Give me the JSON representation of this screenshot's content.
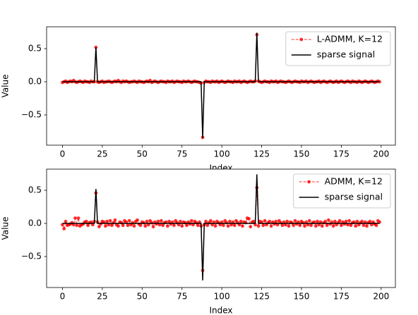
{
  "chart_data": [
    {
      "type": "line",
      "xlabel": "Index",
      "ylabel": "Value",
      "legend": "upper right",
      "grid": false,
      "xlim": [
        -9.95,
        208.95
      ],
      "ylim": [
        -0.957,
        0.83
      ],
      "xticks": [
        0,
        25,
        50,
        75,
        100,
        125,
        150,
        175,
        200
      ],
      "yticks": [
        {
          "value": -0.5,
          "label": "−0.5"
        },
        {
          "value": 0,
          "label": "0.0"
        },
        0.5
      ],
      "x": [
        0,
        1,
        2,
        3,
        4,
        5,
        6,
        7,
        8,
        9,
        10,
        11,
        12,
        13,
        14,
        15,
        16,
        17,
        18,
        19,
        20,
        21,
        22,
        23,
        24,
        25,
        26,
        27,
        28,
        29,
        30,
        31,
        32,
        33,
        34,
        35,
        36,
        37,
        38,
        39,
        40,
        41,
        42,
        43,
        44,
        45,
        46,
        47,
        48,
        49,
        50,
        51,
        52,
        53,
        54,
        55,
        56,
        57,
        58,
        59,
        60,
        61,
        62,
        63,
        64,
        65,
        66,
        67,
        68,
        69,
        70,
        71,
        72,
        73,
        74,
        75,
        76,
        77,
        78,
        79,
        80,
        81,
        82,
        83,
        84,
        85,
        86,
        87,
        88,
        89,
        90,
        91,
        92,
        93,
        94,
        95,
        96,
        97,
        98,
        99,
        100,
        101,
        102,
        103,
        104,
        105,
        106,
        107,
        108,
        109,
        110,
        111,
        112,
        113,
        114,
        115,
        116,
        117,
        118,
        119,
        120,
        121,
        122,
        123,
        124,
        125,
        126,
        127,
        128,
        129,
        130,
        131,
        132,
        133,
        134,
        135,
        136,
        137,
        138,
        139,
        140,
        141,
        142,
        143,
        144,
        145,
        146,
        147,
        148,
        149,
        150,
        151,
        152,
        153,
        154,
        155,
        156,
        157,
        158,
        159,
        160,
        161,
        162,
        163,
        164,
        165,
        166,
        167,
        168,
        169,
        170,
        171,
        172,
        173,
        174,
        175,
        176,
        177,
        178,
        179,
        180,
        181,
        182,
        183,
        184,
        185,
        186,
        187,
        188,
        189,
        190,
        191,
        192,
        193,
        194,
        195,
        196,
        197,
        198,
        199
      ],
      "series": [
        {
          "name": "L-ADMM, K=12",
          "color": "#ff0000",
          "style": "dashed-marker",
          "values": [
            -0.01,
            0,
            0.01,
            -0.01,
            0,
            0.01,
            0,
            0.02,
            0,
            -0.01,
            0,
            0.01,
            0,
            -0.01,
            0.01,
            0,
            0,
            -0.01,
            0.01,
            0,
            0,
            0.52,
            0,
            -0.01,
            0,
            0.01,
            -0.01,
            0,
            0,
            0.01,
            0,
            -0.01,
            0,
            0.01,
            0,
            0.02,
            0,
            -0.01,
            0.01,
            0,
            0.01,
            0,
            -0.01,
            0,
            0,
            0.01,
            0,
            -0.01,
            0.01,
            0,
            0,
            -0.01,
            0,
            0.01,
            0,
            0.02,
            -0.01,
            0,
            0.01,
            0,
            -0.01,
            0,
            0.01,
            0,
            0,
            -0.01,
            0.01,
            0,
            0,
            0.01,
            -0.01,
            0,
            0.01,
            0,
            0,
            -0.01,
            0.01,
            0,
            0,
            0.01,
            0,
            -0.01,
            0,
            0.01,
            0,
            0,
            -0.01,
            -0.02,
            -0.84,
            -0.01,
            0.01,
            0,
            0,
            -0.01,
            0.01,
            0,
            0,
            0.01,
            -0.01,
            0,
            0.01,
            0,
            -0.01,
            0,
            0.01,
            0,
            0,
            -0.01,
            0.01,
            0,
            0,
            0.01,
            -0.01,
            0,
            0.01,
            0,
            -0.01,
            0,
            0.01,
            0,
            0,
            0.01,
            0.71,
            0.01,
            0,
            -0.01,
            0,
            0.01,
            0,
            0,
            -0.01,
            0.01,
            0,
            0,
            0.01,
            -0.01,
            0,
            0.01,
            0,
            0,
            -0.01,
            0,
            0.01,
            0,
            -0.01,
            0,
            0.01,
            0,
            0,
            -0.01,
            0.01,
            0,
            0,
            0.01,
            -0.01,
            0,
            0.01,
            0,
            -0.01,
            0,
            0,
            0.01,
            -0.01,
            0,
            0.01,
            0,
            -0.01,
            0,
            0.01,
            0,
            -0.01,
            0,
            0.01,
            -0.01,
            0,
            0.01,
            0,
            -0.01,
            0,
            0.01,
            0,
            -0.01,
            0.01,
            0,
            0,
            -0.01,
            0.01,
            0,
            -0.01,
            0,
            0.01,
            0,
            -0.01,
            0,
            0.01,
            0,
            -0.01,
            0,
            0.01,
            0
          ]
        },
        {
          "name": "sparse signal",
          "color": "#000000",
          "style": "solid",
          "values": [
            0,
            0,
            0,
            0,
            0,
            0,
            0,
            0,
            0,
            0,
            0,
            0,
            0,
            0,
            0,
            0,
            0,
            0,
            0,
            0,
            0,
            0.52,
            0,
            0,
            0,
            0,
            0,
            0,
            0,
            0,
            0,
            0,
            0,
            0,
            0,
            0,
            0,
            0,
            0,
            0,
            0,
            0,
            0,
            0,
            0,
            0,
            0,
            0,
            0,
            0,
            0,
            0,
            0,
            0,
            0,
            0,
            0,
            0,
            0,
            0,
            0,
            0,
            0,
            0,
            0,
            0,
            0,
            0,
            0,
            0,
            0,
            0,
            0,
            0,
            0,
            0,
            0,
            0,
            0,
            0,
            0,
            0,
            0,
            0,
            0,
            0,
            0,
            0,
            -0.85,
            0,
            0,
            0,
            0,
            0,
            0,
            0,
            0,
            0,
            0,
            0,
            0,
            0,
            0,
            0,
            0,
            0,
            0,
            0,
            0,
            0,
            0,
            0,
            0,
            0,
            0,
            0,
            0,
            0,
            0,
            0,
            0,
            0,
            0.74,
            0,
            0,
            0,
            0,
            0,
            0,
            0,
            0,
            0,
            0,
            0,
            0,
            0,
            0,
            0,
            0,
            0,
            0,
            0,
            0,
            0,
            0,
            0,
            0,
            0,
            0,
            0,
            0,
            0,
            0,
            0,
            0,
            0,
            0,
            0,
            0,
            0,
            0,
            0,
            0,
            0,
            0,
            0,
            0,
            0,
            0,
            0,
            0,
            0,
            0,
            0,
            0,
            0,
            0,
            0,
            0,
            0,
            0,
            0,
            0,
            0,
            0,
            0,
            0,
            0,
            0,
            0,
            0,
            0,
            0,
            0,
            0,
            0,
            0,
            0,
            0,
            0
          ]
        }
      ]
    },
    {
      "type": "line",
      "xlabel": "Index",
      "ylabel": "Value",
      "legend": "upper right",
      "grid": false,
      "xlim": [
        -9.95,
        208.95
      ],
      "ylim": [
        -0.968,
        0.819
      ],
      "xticks": [
        0,
        25,
        50,
        75,
        100,
        125,
        150,
        175,
        200
      ],
      "yticks": [
        {
          "value": -0.5,
          "label": "−0.5"
        },
        {
          "value": 0,
          "label": "0.0"
        },
        0.5
      ],
      "x": [
        0,
        1,
        2,
        3,
        4,
        5,
        6,
        7,
        8,
        9,
        10,
        11,
        12,
        13,
        14,
        15,
        16,
        17,
        18,
        19,
        20,
        21,
        22,
        23,
        24,
        25,
        26,
        27,
        28,
        29,
        30,
        31,
        32,
        33,
        34,
        35,
        36,
        37,
        38,
        39,
        40,
        41,
        42,
        43,
        44,
        45,
        46,
        47,
        48,
        49,
        50,
        51,
        52,
        53,
        54,
        55,
        56,
        57,
        58,
        59,
        60,
        61,
        62,
        63,
        64,
        65,
        66,
        67,
        68,
        69,
        70,
        71,
        72,
        73,
        74,
        75,
        76,
        77,
        78,
        79,
        80,
        81,
        82,
        83,
        84,
        85,
        86,
        87,
        88,
        89,
        90,
        91,
        92,
        93,
        94,
        95,
        96,
        97,
        98,
        99,
        100,
        101,
        102,
        103,
        104,
        105,
        106,
        107,
        108,
        109,
        110,
        111,
        112,
        113,
        114,
        115,
        116,
        117,
        118,
        119,
        120,
        121,
        122,
        123,
        124,
        125,
        126,
        127,
        128,
        129,
        130,
        131,
        132,
        133,
        134,
        135,
        136,
        137,
        138,
        139,
        140,
        141,
        142,
        143,
        144,
        145,
        146,
        147,
        148,
        149,
        150,
        151,
        152,
        153,
        154,
        155,
        156,
        157,
        158,
        159,
        160,
        161,
        162,
        163,
        164,
        165,
        166,
        167,
        168,
        169,
        170,
        171,
        172,
        173,
        174,
        175,
        176,
        177,
        178,
        179,
        180,
        181,
        182,
        183,
        184,
        185,
        186,
        187,
        188,
        189,
        190,
        191,
        192,
        193,
        194,
        195,
        196,
        197,
        198,
        199
      ],
      "series": [
        {
          "name": "ADMM, K=12",
          "color": "#ff0000",
          "style": "dashed-marker",
          "values": [
            -0.02,
            -0.08,
            0.03,
            -0.03,
            -0.02,
            -0.01,
            0.01,
            -0.02,
            0.08,
            -0.03,
            0.08,
            -0.04,
            -0.02,
            -0.01,
            0.02,
            0.03,
            -0.03,
            0.01,
            0.02,
            -0.02,
            0.03,
            0.46,
            0.02,
            -0.05,
            -0.01,
            0.03,
            0.02,
            -0.04,
            0.03,
            -0.02,
            0.04,
            -0.03,
            0.01,
            0.05,
            -0.02,
            -0.04,
            0.02,
            0.01,
            -0.03,
            0.04,
            0.02,
            -0.03,
            0.04,
            -0.02,
            0.01,
            -0.04,
            0.03,
            0.05,
            -0.01,
            -0.03,
            0.02,
            0.01,
            -0.04,
            0.03,
            -0.02,
            0.04,
            0.01,
            -0.05,
            0.02,
            -0.01,
            0.03,
            -0.02,
            0.04,
            -0.03,
            0.01,
            0.02,
            -0.04,
            0.03,
            -0.01,
            0.02,
            -0.03,
            0.04,
            0.01,
            -0.02,
            0.03,
            -0.04,
            0.02,
            0.01,
            -0.03,
            0.02,
            -0.01,
            0.04,
            -0.02,
            0.03,
            0.01,
            -0.03,
            0.02,
            -0.04,
            -0.71,
            -0.02,
            0.03,
            -0.03,
            0.01,
            0.04,
            -0.02,
            0.02,
            -0.04,
            0.03,
            0.01,
            -0.02,
            0.02,
            -0.03,
            0.04,
            0.01,
            -0.04,
            0.03,
            -0.02,
            0.02,
            -0.03,
            0.04,
            0.01,
            -0.02,
            0.03,
            -0.04,
            0.02,
            0.01,
            0.08,
            0.07,
            -0.05,
            0.02,
            0.03,
            -0.02,
            0.54,
            -0.04,
            0.03,
            0.02,
            -0.03,
            0.04,
            -0.02,
            0.01,
            0.03,
            -0.04,
            0.02,
            -0.01,
            0.03,
            -0.02,
            0.04,
            0.01,
            -0.03,
            0.02,
            -0.02,
            0.03,
            -0.04,
            0.02,
            0.01,
            -0.03,
            0.04,
            -0.01,
            0.02,
            -0.03,
            0.03,
            0.01,
            -0.04,
            0.02,
            -0.02,
            0.04,
            -0.03,
            0.01,
            0.02,
            -0.04,
            0.03,
            -0.02,
            0.02,
            -0.04,
            0.01,
            0.03,
            -0.03,
            0.05,
            -0.01,
            0.02,
            -0.04,
            0.03,
            -0.02,
            0.01,
            0.04,
            -0.03,
            0.02,
            -0.01,
            0.03,
            -0.02,
            0.04,
            -0.03,
            0.01,
            0.02,
            -0.04,
            0.03,
            -0.02,
            0.01,
            0.03,
            -0.03,
            0.02,
            -0.04,
            0.01,
            0.03,
            -0.02,
            0.02,
            -0.01,
            -0.03,
            0.04,
            0.02
          ]
        },
        {
          "name": "sparse signal",
          "color": "#000000",
          "style": "solid",
          "values": [
            0,
            0,
            0,
            0,
            0,
            0,
            0,
            0,
            0,
            0,
            0,
            0,
            0,
            0,
            0,
            0,
            0,
            0,
            0,
            0,
            0,
            0.52,
            0,
            0,
            0,
            0,
            0,
            0,
            0,
            0,
            0,
            0,
            0,
            0,
            0,
            0,
            0,
            0,
            0,
            0,
            0,
            0,
            0,
            0,
            0,
            0,
            0,
            0,
            0,
            0,
            0,
            0,
            0,
            0,
            0,
            0,
            0,
            0,
            0,
            0,
            0,
            0,
            0,
            0,
            0,
            0,
            0,
            0,
            0,
            0,
            0,
            0,
            0,
            0,
            0,
            0,
            0,
            0,
            0,
            0,
            0,
            0,
            0,
            0,
            0,
            0,
            0,
            0,
            -0.86,
            0,
            0,
            0,
            0,
            0,
            0,
            0,
            0,
            0,
            0,
            0,
            0,
            0,
            0,
            0,
            0,
            0,
            0,
            0,
            0,
            0,
            0,
            0,
            0,
            0,
            0,
            0,
            0,
            0,
            0,
            0,
            0,
            0,
            0.74,
            0,
            0,
            0,
            0,
            0,
            0,
            0,
            0,
            0,
            0,
            0,
            0,
            0,
            0,
            0,
            0,
            0,
            0,
            0,
            0,
            0,
            0,
            0,
            0,
            0,
            0,
            0,
            0,
            0,
            0,
            0,
            0,
            0,
            0,
            0,
            0,
            0,
            0,
            0,
            0,
            0,
            0,
            0,
            0,
            0,
            0,
            0,
            0,
            0,
            0,
            0,
            0,
            0,
            0,
            0,
            0,
            0,
            0,
            0,
            0,
            0,
            0,
            0,
            0,
            0,
            0,
            0,
            0,
            0,
            0,
            0,
            0,
            0,
            0,
            0,
            0,
            0
          ]
        }
      ]
    }
  ]
}
